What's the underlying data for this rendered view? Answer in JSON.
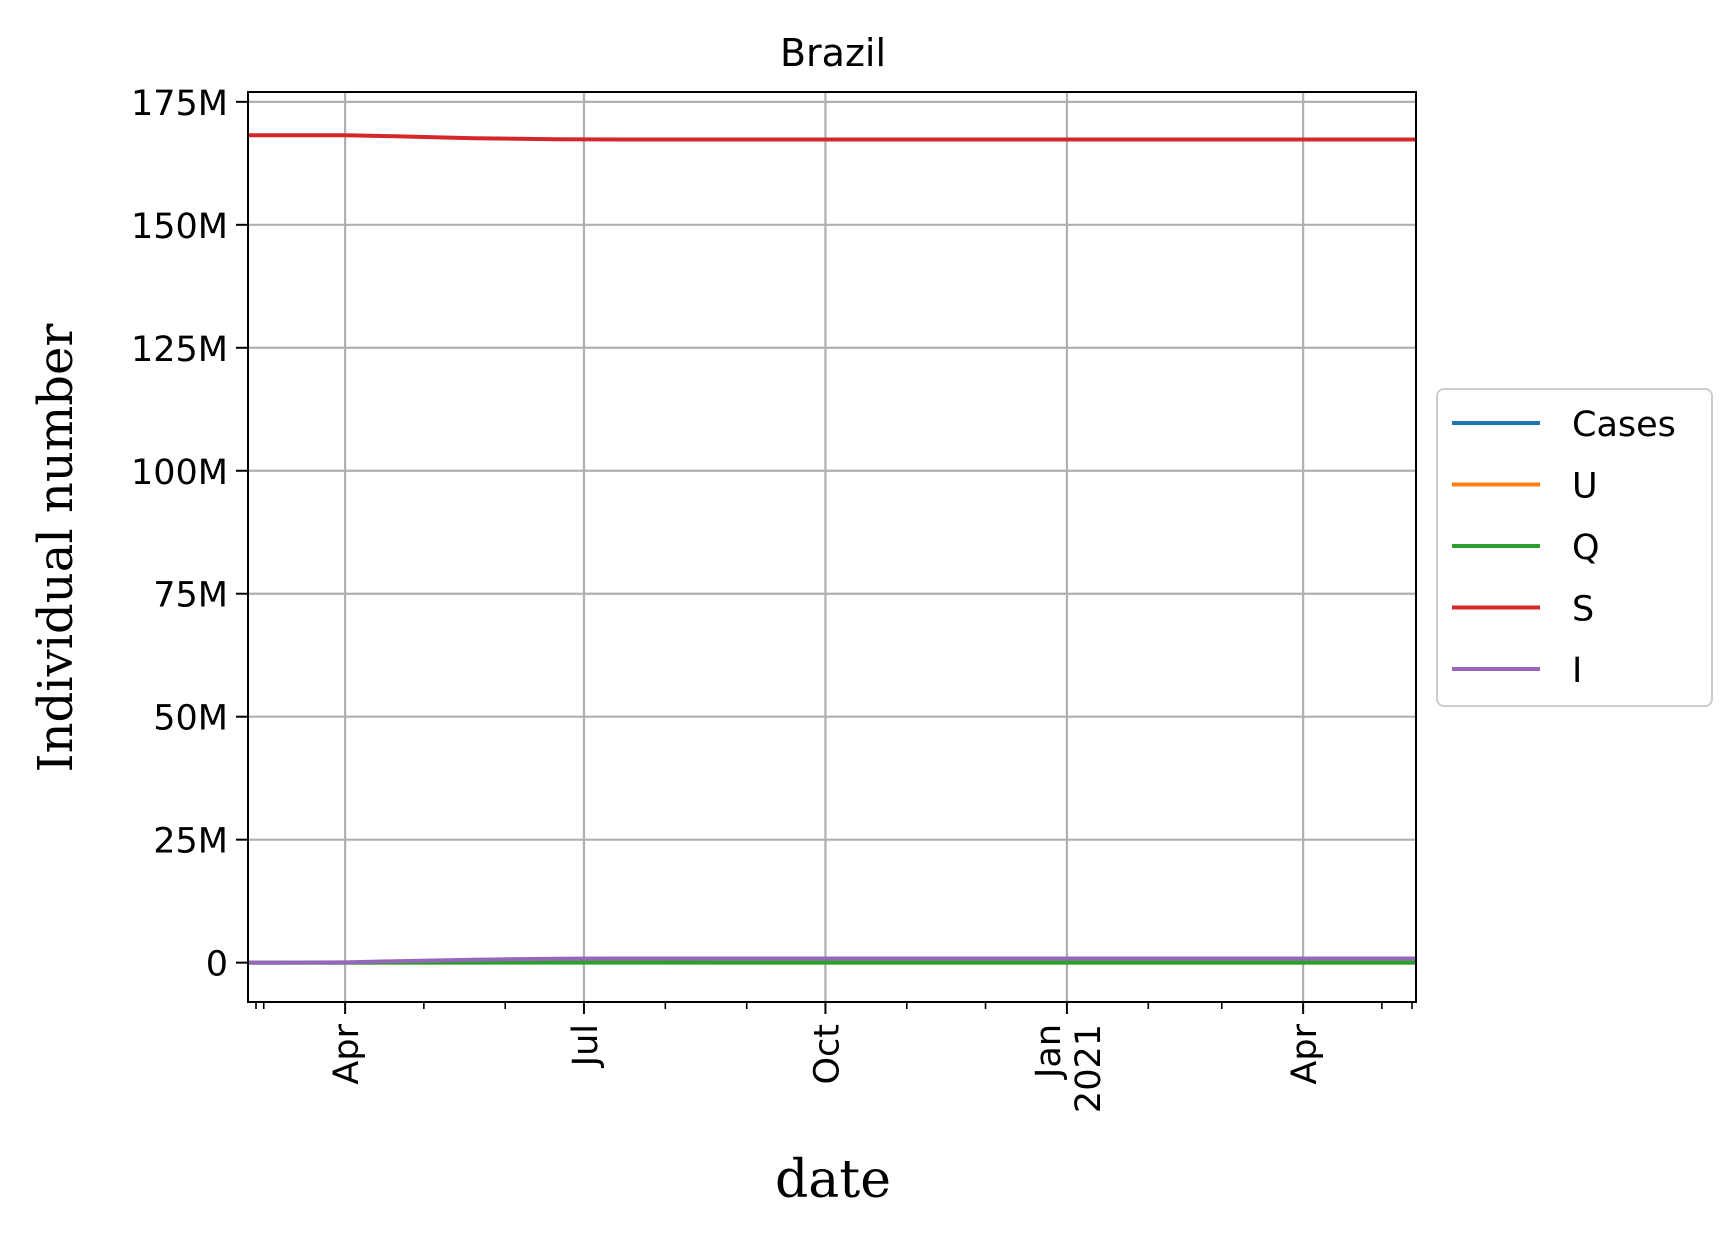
{
  "chart_data": {
    "type": "line",
    "title": "Brazil",
    "xlabel": "date",
    "ylabel": "Individual number",
    "x_axis": {
      "type": "date",
      "range": [
        "2020-02-24",
        "2021-05-14"
      ],
      "major_ticks": [
        {
          "date": "2020-04-01",
          "label": "Apr"
        },
        {
          "date": "2020-07-01",
          "label": "Jul"
        },
        {
          "date": "2020-10-01",
          "label": "Oct"
        },
        {
          "date": "2021-01-01",
          "label": "Jan\n2021"
        },
        {
          "date": "2021-04-01",
          "label": "Apr"
        }
      ],
      "minor_ticks": [
        "2020-03-01",
        "2020-05-01",
        "2020-06-01",
        "2020-08-01",
        "2020-09-01",
        "2020-11-01",
        "2020-12-01",
        "2021-02-01",
        "2021-03-01",
        "2021-05-01"
      ]
    },
    "y_axis": {
      "range": [
        -8000000,
        177000000
      ],
      "ticks": [
        {
          "value": 0,
          "label": "0"
        },
        {
          "value": 25000000,
          "label": "25M"
        },
        {
          "value": 50000000,
          "label": "50M"
        },
        {
          "value": 75000000,
          "label": "75M"
        },
        {
          "value": 100000000,
          "label": "100M"
        },
        {
          "value": 125000000,
          "label": "125M"
        },
        {
          "value": 150000000,
          "label": "150M"
        },
        {
          "value": 175000000,
          "label": "175M"
        }
      ]
    },
    "grid": true,
    "legend_position": "center-right-outside",
    "series": [
      {
        "name": "Cases",
        "color": "#1f77b4",
        "x": [
          "2020-02-24",
          "2020-04-01",
          "2020-05-01",
          "2020-06-01",
          "2020-07-01",
          "2020-10-01",
          "2021-01-01",
          "2021-05-14"
        ],
        "y": [
          0,
          5000,
          80000,
          500000,
          800000,
          820000,
          820000,
          820000
        ]
      },
      {
        "name": "U",
        "color": "#ff7f0e",
        "x": [
          "2020-02-24",
          "2020-04-01",
          "2020-05-01",
          "2020-06-01",
          "2020-07-01",
          "2020-10-01",
          "2021-01-01",
          "2021-05-14"
        ],
        "y": [
          0,
          2000,
          20000,
          40000,
          30000,
          20000,
          20000,
          20000
        ]
      },
      {
        "name": "Q",
        "color": "#2ca02c",
        "x": [
          "2020-02-24",
          "2020-04-01",
          "2020-05-01",
          "2020-06-01",
          "2020-07-01",
          "2020-10-01",
          "2021-01-01",
          "2021-05-14"
        ],
        "y": [
          0,
          1000,
          10000,
          20000,
          15000,
          10000,
          10000,
          10000
        ]
      },
      {
        "name": "S",
        "color": "#d62728",
        "x": [
          "2020-02-24",
          "2020-04-01",
          "2020-04-20",
          "2020-05-20",
          "2020-06-20",
          "2020-07-15",
          "2020-10-01",
          "2021-01-01",
          "2021-05-14"
        ],
        "y": [
          168200000,
          168200000,
          168000000,
          167600000,
          167400000,
          167350000,
          167350000,
          167350000,
          167350000
        ]
      },
      {
        "name": "I",
        "color": "#9467bd",
        "x": [
          "2020-02-24",
          "2020-04-01",
          "2020-04-20",
          "2020-05-20",
          "2020-06-20",
          "2020-07-15",
          "2020-10-01",
          "2021-01-01",
          "2021-05-14"
        ],
        "y": [
          0,
          50000,
          300000,
          600000,
          800000,
          850000,
          850000,
          850000,
          850000
        ]
      }
    ]
  }
}
